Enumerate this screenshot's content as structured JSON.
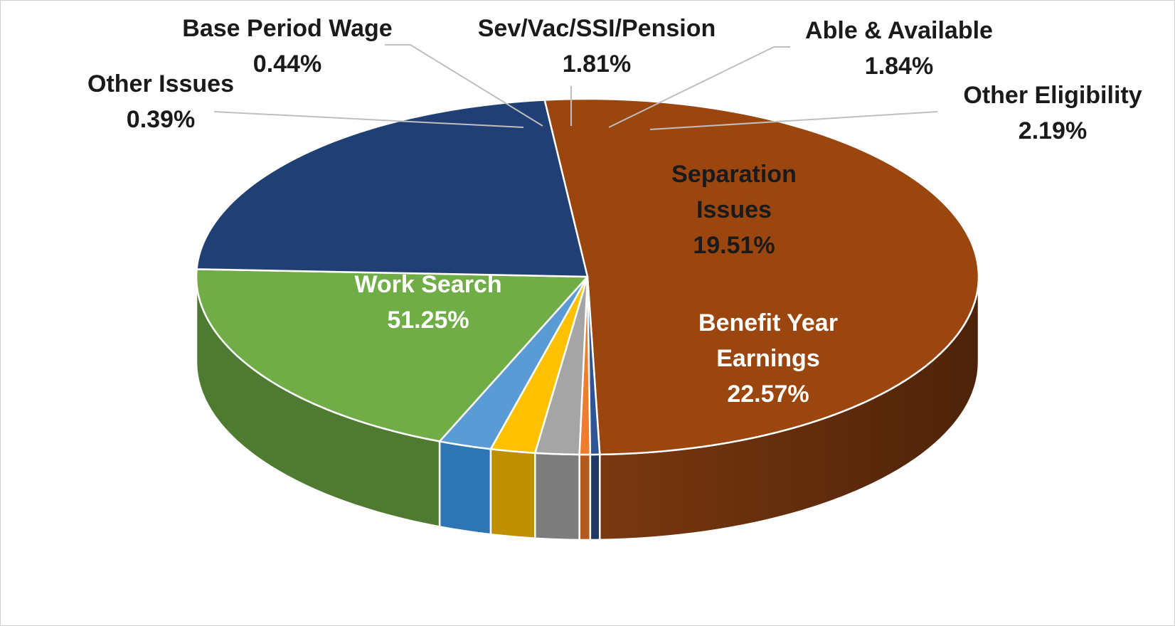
{
  "chart_data": {
    "type": "pie",
    "variant": "3d",
    "slices": [
      {
        "label": "Work Search",
        "value": 51.25,
        "display": "51.25%",
        "label_lines": [
          "Work Search"
        ],
        "color": "#9b460f",
        "side_color": "#6e320b",
        "label_color": "#ffffff",
        "label_placement": "inside"
      },
      {
        "label": "Other Issues",
        "value": 0.39,
        "display": "0.39%",
        "label_lines": [
          "Other Issues"
        ],
        "color": "#2f5597",
        "side_color": "#1f3864",
        "label_color": "#1a1a1a",
        "label_placement": "outside-left"
      },
      {
        "label": "Base Period Wage",
        "value": 0.44,
        "display": "0.44%",
        "label_lines": [
          "Base Period Wage"
        ],
        "color": "#ed7d31",
        "side_color": "#b35a1f",
        "label_color": "#1a1a1a",
        "label_placement": "outside-top"
      },
      {
        "label": "Sev/Vac/SSI/Pension",
        "value": 1.81,
        "display": "1.81%",
        "label_lines": [
          "Sev/Vac/SSI/Pension"
        ],
        "color": "#a5a5a5",
        "side_color": "#7c7c7c",
        "label_color": "#1a1a1a",
        "label_placement": "outside-top"
      },
      {
        "label": "Able & Available",
        "value": 1.84,
        "display": "1.84%",
        "label_lines": [
          "Able & Available"
        ],
        "color": "#ffc000",
        "side_color": "#bf9000",
        "label_color": "#1a1a1a",
        "label_placement": "outside-top"
      },
      {
        "label": "Other Eligibility",
        "value": 2.19,
        "display": "2.19%",
        "label_lines": [
          "Other Eligibility"
        ],
        "color": "#5b9bd5",
        "side_color": "#2e75b6",
        "label_color": "#1a1a1a",
        "label_placement": "outside-right"
      },
      {
        "label": "Separation Issues",
        "value": 19.51,
        "display": "19.51%",
        "label_lines": [
          "Separation",
          "Issues"
        ],
        "color": "#70ad47",
        "side_color": "#4e7b31",
        "label_color": "#1a1a1a",
        "label_placement": "inside"
      },
      {
        "label": "Benefit Year Earnings",
        "value": 22.57,
        "display": "22.57%",
        "label_lines": [
          "Benefit Year",
          "Earnings"
        ],
        "color": "#203f74",
        "side_color": "#0f1e38",
        "label_color": "#ffffff",
        "label_placement": "inside"
      }
    ],
    "title": "",
    "legend": "none"
  }
}
